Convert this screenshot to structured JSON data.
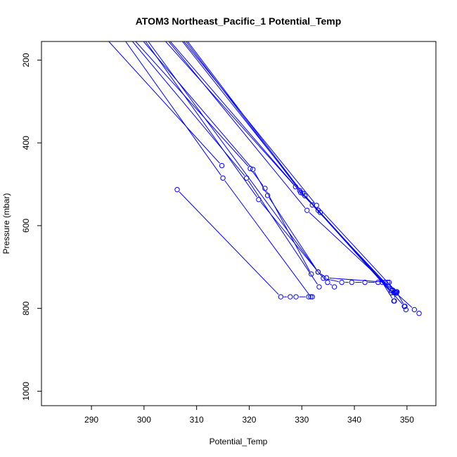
{
  "chart_data": {
    "type": "line",
    "title": "ATOM3 Northeast_Pacific_1 Potential_Temp",
    "xlabel": "Potential_Temp",
    "ylabel": "Pressure (mbar)",
    "xlim": [
      280.5,
      355.5
    ],
    "ylim": [
      1035,
      155
    ],
    "y_reversed": true,
    "xticks": [
      290,
      300,
      310,
      320,
      330,
      340,
      350
    ],
    "yticks": [
      200,
      400,
      600,
      800,
      1000
    ],
    "grid": false,
    "legend": "none",
    "color": "#0000ff",
    "point_style": "open-circle",
    "series": [
      {
        "x": [
          306.3,
          326.0,
          327.8,
          328.9,
          331.3,
          332.0
        ],
        "y": [
          513,
          772,
          772,
          772,
          772,
          772
        ]
      },
      {
        "x": [
          293.3,
          314.8
        ],
        "y": [
          155,
          455
        ]
      },
      {
        "x": [
          296.5,
          315.0,
          331.7
        ],
        "y": [
          155,
          485,
          772
        ]
      },
      {
        "x": [
          297.8,
          319.5,
          333.3
        ],
        "y": [
          155,
          485,
          748
        ]
      },
      {
        "x": [
          298.4,
          320.2,
          323.0,
          331.8
        ],
        "y": [
          155,
          462,
          510,
          717
        ]
      },
      {
        "x": [
          299.9,
          320.7,
          323.5,
          333.1,
          334.9,
          336.2
        ],
        "y": [
          155,
          464,
          527,
          712,
          737,
          748
        ]
      },
      {
        "x": [
          300.3,
          321.8,
          334.1,
          337.6,
          339.5,
          342.0,
          344.5
        ],
        "y": [
          155,
          537,
          727,
          737,
          737,
          737,
          737
        ]
      },
      {
        "x": [
          300.8,
          333.1,
          334.7,
          346.3,
          347.3,
          351.4,
          352.3
        ],
        "y": [
          155,
          712,
          726,
          737,
          756,
          803,
          812
        ]
      },
      {
        "x": [
          304.1,
          328.8,
          332.0,
          345.8,
          346.6,
          347.5
        ],
        "y": [
          155,
          506,
          550,
          737,
          737,
          762
        ]
      },
      {
        "x": [
          304.7,
          331.0,
          347.3,
          348.1,
          348.0
        ],
        "y": [
          155,
          563,
          756,
          760,
          763
        ]
      },
      {
        "x": [
          305.0,
          329.8,
          333.1,
          347.0,
          347.7,
          347.6
        ],
        "y": [
          155,
          520,
          563,
          762,
          760,
          782
        ]
      },
      {
        "x": [
          307.3,
          330.6,
          333.5,
          349.5,
          349.8
        ],
        "y": [
          155,
          528,
          568,
          795,
          803
        ]
      },
      {
        "x": [
          307.6,
          332.8,
          348.0,
          349.6
        ],
        "y": [
          155,
          551,
          760,
          795
        ]
      },
      {
        "x": [
          308.0,
          329.6,
          345.3,
          347.5
        ],
        "y": [
          155,
          515,
          737,
          782
        ]
      },
      {
        "x": [
          308.3,
          330.2,
          347.0,
          347.8
        ],
        "y": [
          155,
          522,
          757,
          762
        ]
      }
    ]
  }
}
